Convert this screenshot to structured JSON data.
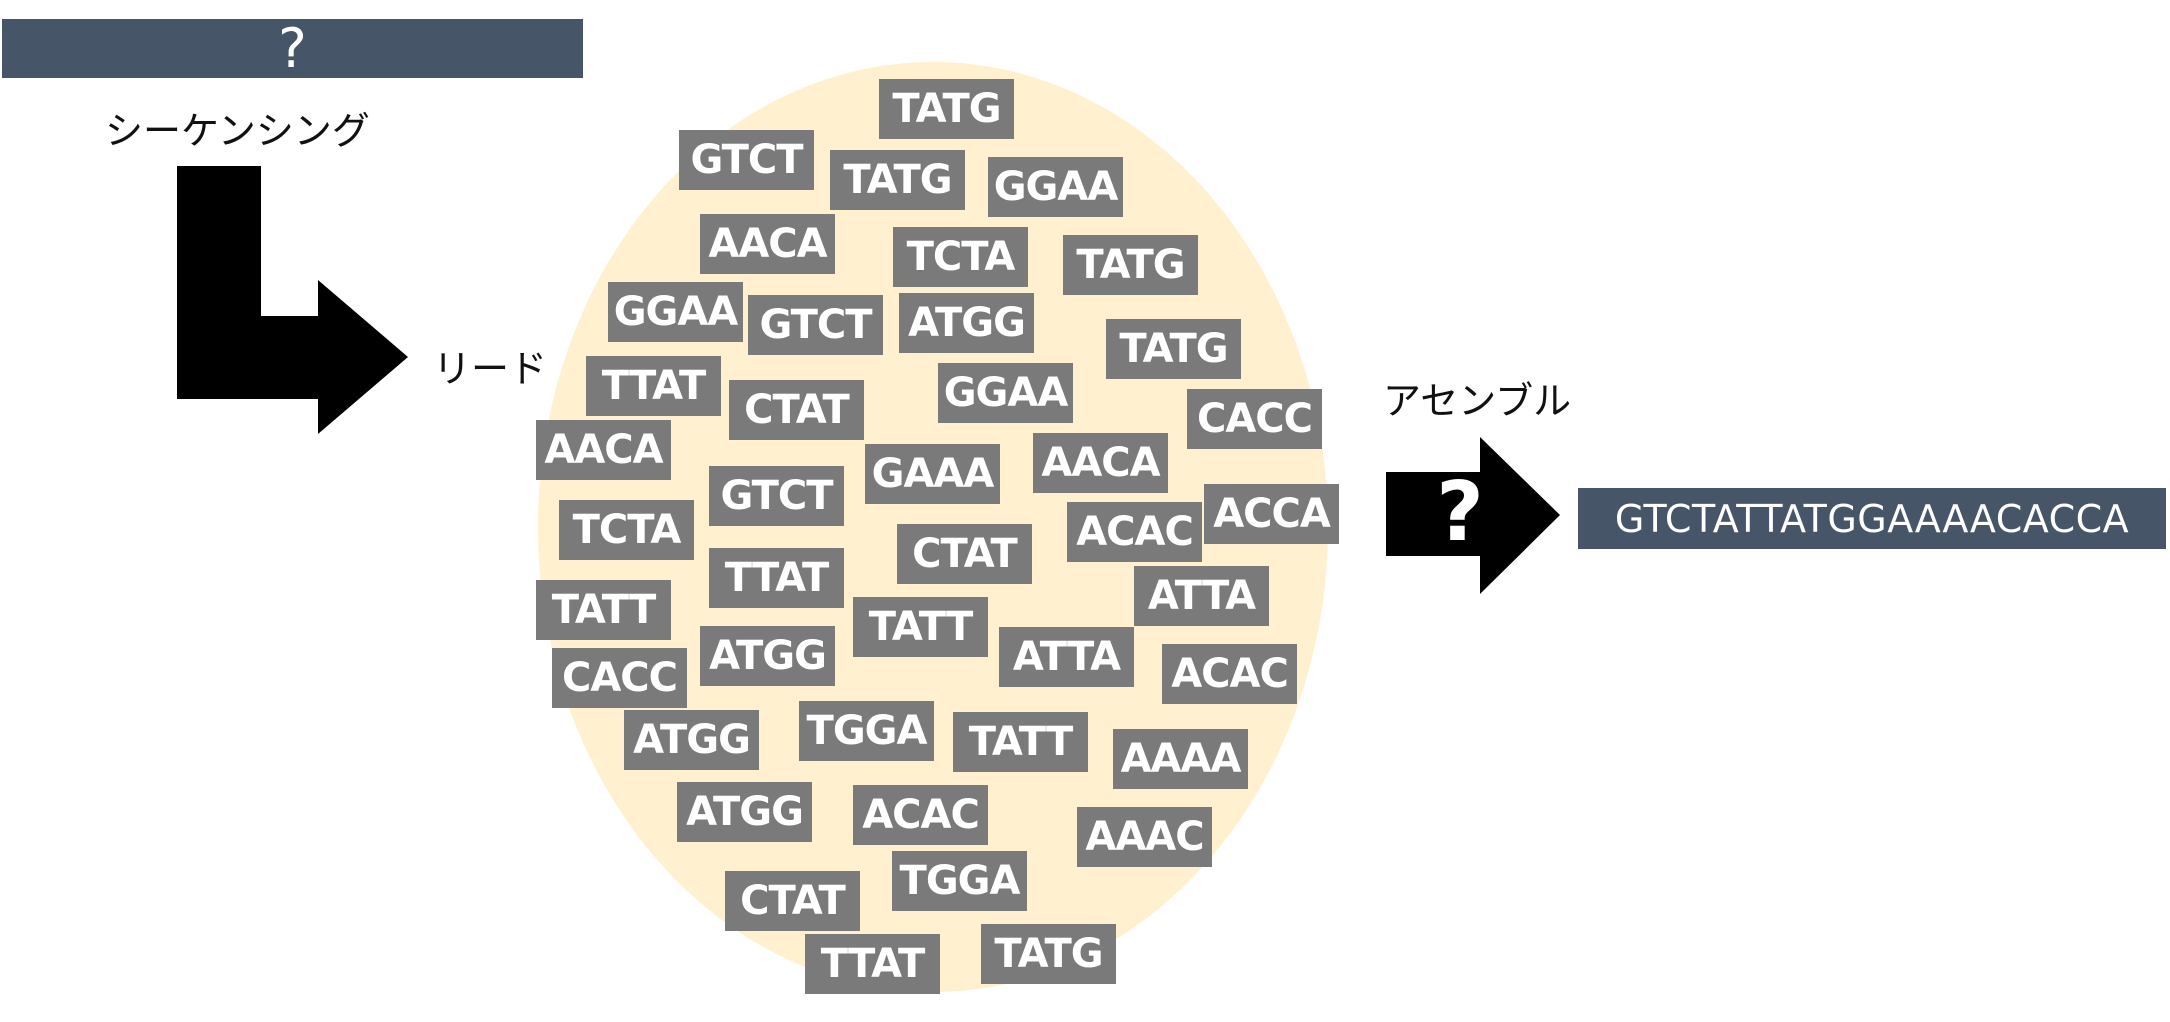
{
  "source_box": {
    "text": "?"
  },
  "labels": {
    "sequencing": "シーケンシング",
    "reads": "リード",
    "assembly": "アセンブル"
  },
  "assembly_arrow": {
    "glyph": "?"
  },
  "reads": [
    "TATG",
    "GTCT",
    "TATG",
    "GGAA",
    "AACA",
    "TCTA",
    "TATG",
    "GGAA",
    "GTCT",
    "ATGG",
    "TATG",
    "TTAT",
    "CTAT",
    "GGAA",
    "CACC",
    "AACA",
    "GAAA",
    "AACA",
    "GTCT",
    "ACCA",
    "TCTA",
    "ACAC",
    "CTAT",
    "TTAT",
    "ATTA",
    "TATT",
    "TATT",
    "ATGG",
    "ATTA",
    "ACAC",
    "CACC",
    "TGGA",
    "ATGG",
    "TATT",
    "AAAA",
    "ATGG",
    "ACAC",
    "AAAC",
    "TGGA",
    "CTAT",
    "TTAT",
    "TATG"
  ],
  "assembled_sequence": "GTCTATTATGGAAAACACCA",
  "colors": {
    "box_slate": "#475569",
    "read_gray": "#7a7a7a",
    "pool_cream": "#fff1cf",
    "arrow_black": "#000000"
  }
}
